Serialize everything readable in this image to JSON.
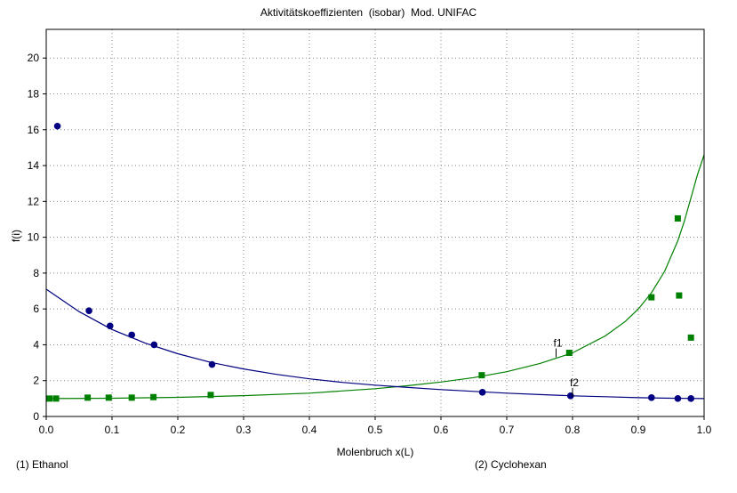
{
  "chart_data": {
    "type": "scatter",
    "title": "Aktivitätskoeffizienten  (isobar)  Mod. UNIFAC",
    "xlabel": "Molenbruch x(L)",
    "ylabel": "f(i)",
    "xlim": [
      0.0,
      1.0
    ],
    "ylim": [
      0,
      21.6
    ],
    "xticks": [
      "0.0",
      "0.1",
      "0.2",
      "0.3",
      "0.4",
      "0.5",
      "0.6",
      "0.7",
      "0.8",
      "0.9",
      "1.0"
    ],
    "yticks": [
      "0",
      "2",
      "4",
      "6",
      "8",
      "10",
      "12",
      "14",
      "16",
      "18",
      "20"
    ],
    "grid": true,
    "components": [
      "(1) Ethanol",
      "(2) Cyclohexan"
    ],
    "series": [
      {
        "name": "f1",
        "color": "#008000",
        "marker": "square",
        "x": [
          0.005,
          0.015,
          0.063,
          0.095,
          0.13,
          0.163,
          0.25,
          0.662,
          0.795,
          0.92,
          0.96,
          0.962,
          0.98
        ],
        "y": [
          1.0,
          1.0,
          1.05,
          1.05,
          1.05,
          1.08,
          1.2,
          2.3,
          3.55,
          6.65,
          11.05,
          6.75,
          4.4
        ],
        "curve": {
          "x": [
            0.0,
            0.1,
            0.2,
            0.3,
            0.4,
            0.5,
            0.55,
            0.6,
            0.65,
            0.7,
            0.75,
            0.8,
            0.85,
            0.88,
            0.9,
            0.92,
            0.94,
            0.96,
            0.97,
            0.98,
            0.99,
            1.0
          ],
          "y": [
            1.0,
            1.02,
            1.07,
            1.16,
            1.3,
            1.55,
            1.72,
            1.92,
            2.17,
            2.5,
            2.95,
            3.55,
            4.5,
            5.3,
            6.0,
            6.9,
            8.1,
            9.8,
            10.9,
            12.2,
            13.5,
            14.6
          ]
        }
      },
      {
        "name": "f2",
        "color": "#000080",
        "marker": "circle",
        "x": [
          0.017,
          0.065,
          0.097,
          0.13,
          0.164,
          0.252,
          0.663,
          0.797,
          0.92,
          0.96,
          0.98
        ],
        "y": [
          16.2,
          5.9,
          5.05,
          4.55,
          4.0,
          2.9,
          1.35,
          1.15,
          1.05,
          1.0,
          1.0
        ],
        "curve": {
          "x": [
            0.0,
            0.05,
            0.1,
            0.15,
            0.2,
            0.25,
            0.3,
            0.35,
            0.4,
            0.45,
            0.5,
            0.55,
            0.6,
            0.65,
            0.7,
            0.75,
            0.8,
            0.85,
            0.9,
            0.95,
            1.0
          ],
          "y": [
            7.1,
            5.85,
            4.85,
            4.1,
            3.5,
            3.02,
            2.65,
            2.35,
            2.1,
            1.9,
            1.75,
            1.62,
            1.5,
            1.4,
            1.3,
            1.22,
            1.15,
            1.1,
            1.05,
            1.02,
            1.0
          ]
        }
      }
    ],
    "annotations": [
      {
        "text": "f1",
        "x": 0.775,
        "y": 3.3
      },
      {
        "text": "f2",
        "x": 0.8,
        "y": 1.1
      }
    ]
  }
}
